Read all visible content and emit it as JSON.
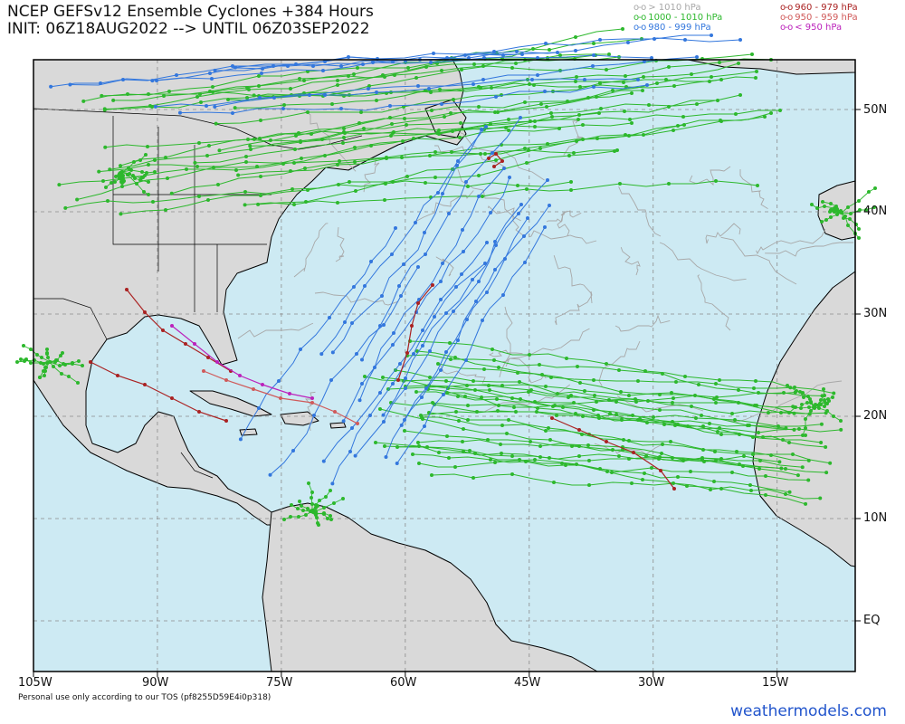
{
  "title": {
    "line1": "NCEP GEFSv12 Ensemble Cyclones +384 Hours",
    "line2": "INIT: 06Z18AUG2022 --> UNTIL 06Z03SEP2022"
  },
  "legend": [
    {
      "marker": "o-o",
      "label": "> 1010 hPa",
      "color": "#a8a8a8"
    },
    {
      "marker": "o-o",
      "label": "1000 - 1010 hPa",
      "color": "#2db82d"
    },
    {
      "marker": "o-o",
      "label": "980 - 999 hPa",
      "color": "#3377dd"
    },
    {
      "marker": "o-o",
      "label": "960 - 979 hPa",
      "color": "#aa2222"
    },
    {
      "marker": "o-o",
      "label": "950 - 959 hPa",
      "color": "#d05a5a"
    },
    {
      "marker": "o-o",
      "label": "< 950 hPa",
      "color": "#bb22bb"
    }
  ],
  "axes": {
    "lon_labels": [
      "105W",
      "90W",
      "75W",
      "60W",
      "45W",
      "30W",
      "15W"
    ],
    "lon_values": [
      -105,
      -90,
      -75,
      -60,
      -45,
      -30,
      -15
    ],
    "lat_labels": [
      "50N",
      "40N",
      "30N",
      "20N",
      "10N",
      "EQ"
    ],
    "lat_values": [
      50,
      40,
      30,
      20,
      10,
      0
    ],
    "lon_range": [
      -105,
      -5
    ],
    "lat_range": [
      -5,
      55
    ]
  },
  "colors": {
    "ocean": "#cdeaf3",
    "land": "#d9d9d9",
    "border": "#000000",
    "grid": "#8a8a8a"
  },
  "footer": {
    "disclaimer": "Personal use only according to our TOS (pf8255D59E4i0p318)",
    "site": "weathermodels.com"
  }
}
